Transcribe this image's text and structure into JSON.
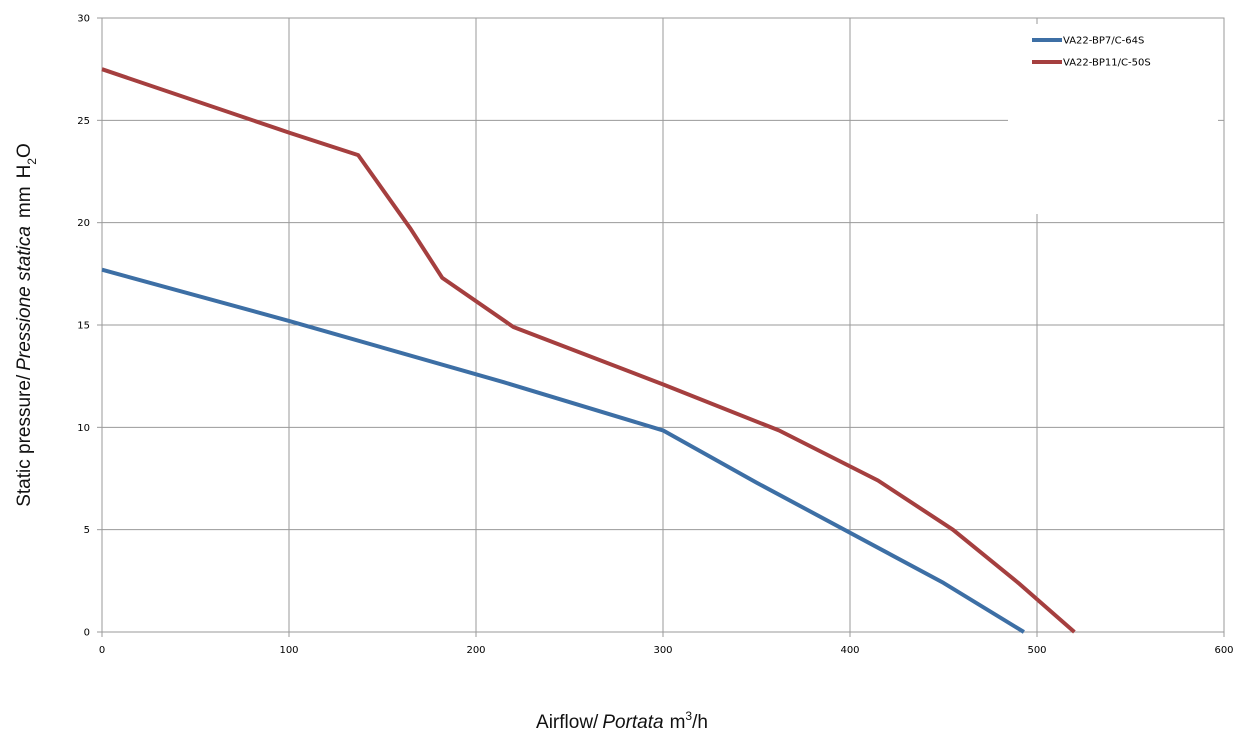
{
  "chart_data": {
    "type": "line",
    "xlim": [
      0,
      600
    ],
    "ylim": [
      0,
      30
    ],
    "xticks": [
      "0",
      "100",
      "200",
      "300",
      "400",
      "500",
      "600"
    ],
    "yticks": [
      "0",
      "5",
      "10",
      "15",
      "20",
      "25",
      "30"
    ],
    "xlabel": {
      "en": "Airflow",
      "sep": "/",
      "it": "Portata",
      "unit_base": "m",
      "unit_sup": "3",
      "unit_tail": "/h"
    },
    "ylabel": {
      "en": "Static pressure",
      "sep": "/",
      "it": "Pressione statica",
      "unit_mm": "mm",
      "unit_h": "H",
      "unit_sub": "2",
      "unit_o": "O"
    },
    "grid": true,
    "legend_position": "top-right",
    "series": [
      {
        "name": "VA22-BP7/C-64S",
        "color": "#3d6fa5",
        "points": [
          [
            0,
            17.7
          ],
          [
            100,
            15.2
          ],
          [
            215,
            12.2
          ],
          [
            300,
            9.85
          ],
          [
            350,
            7.3
          ],
          [
            450,
            2.4
          ],
          [
            493,
            0
          ]
        ]
      },
      {
        "name": "VA22-BP11/C-50S",
        "color": "#a53f3f",
        "points": [
          [
            0,
            27.5
          ],
          [
            100,
            24.4
          ],
          [
            137,
            23.3
          ],
          [
            165,
            19.7
          ],
          [
            182,
            17.3
          ],
          [
            220,
            14.9
          ],
          [
            300,
            12.1
          ],
          [
            362,
            9.85
          ],
          [
            415,
            7.4
          ],
          [
            455,
            5.0
          ],
          [
            490,
            2.4
          ],
          [
            520,
            0
          ]
        ]
      }
    ]
  }
}
